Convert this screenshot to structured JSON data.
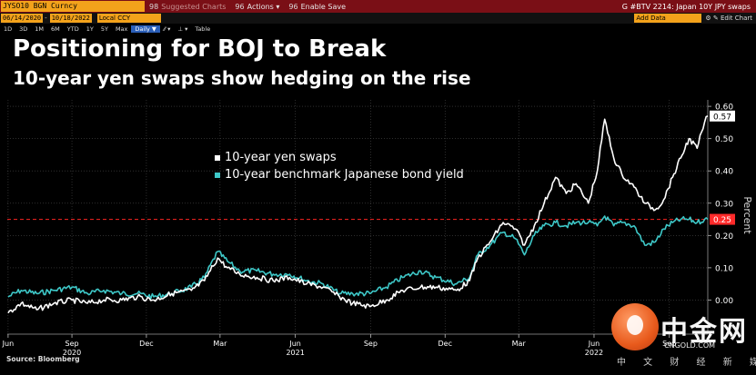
{
  "toolbar": {
    "ticker": "JYSO10 BGN Curncy",
    "suggested_num": "98",
    "suggested": "Suggested Charts",
    "actions_num": "96",
    "actions": "Actions",
    "save_num": "96",
    "save": "Enable Save",
    "security": "G #BTV 2214: Japan 10Y JPY swaps"
  },
  "daterange": {
    "start": "06/14/2020",
    "end": "10/18/2022",
    "currency": "Local CCY",
    "add_data": "Add Data",
    "edit_chart": "Edit Chart",
    "timeframes": [
      "1D",
      "3D",
      "1M",
      "6M",
      "YTD",
      "1Y",
      "5Y",
      "Max",
      "Daily ▼"
    ],
    "selected_timeframe": "Daily ▼",
    "table_label": "Table"
  },
  "title": "Positioning for BOJ to Break",
  "subtitle": "10-year yen swaps show hedging on the rise",
  "source": "Source: Bloomberg",
  "colors": {
    "swap": "#ffffff",
    "jgb": "#3ec8c8",
    "ref_line": "#e0201e",
    "ref_badge": "#ff2a2a"
  },
  "watermark": {
    "name": "中金网",
    "url": "CNGOLD.COM",
    "tagline": "中 文 财 经 新 媒 体"
  },
  "chart_data": {
    "type": "line",
    "ylabel": "Percent",
    "ylim": [
      -0.1,
      0.62
    ],
    "yticks": [
      0.0,
      0.1,
      0.2,
      0.3,
      0.4,
      0.5,
      0.6
    ],
    "ytick_labels": [
      "0.00",
      "0.10",
      "0.20",
      "0.30",
      "0.40",
      "0.50",
      "0.60"
    ],
    "x_ticks": [
      {
        "date": "2020-06-15",
        "label": "Jun"
      },
      {
        "date": "2020-09-01",
        "label": "Sep"
      },
      {
        "date": "2020-12-01",
        "label": "Dec"
      },
      {
        "date": "2021-03-01",
        "label": "Mar"
      },
      {
        "date": "2021-06-01",
        "label": "Jun"
      },
      {
        "date": "2021-09-01",
        "label": "Sep"
      },
      {
        "date": "2021-12-01",
        "label": "Dec"
      },
      {
        "date": "2022-03-01",
        "label": "Mar"
      },
      {
        "date": "2022-06-01",
        "label": "Jun"
      },
      {
        "date": "2022-09-01",
        "label": "Sep"
      }
    ],
    "year_labels": [
      {
        "date": "2020-09-01",
        "label": "2020"
      },
      {
        "date": "2021-06-01",
        "label": "2021"
      },
      {
        "date": "2022-06-01",
        "label": "2022"
      }
    ],
    "xlim": [
      "2020-06-14",
      "2022-10-18"
    ],
    "reference_line": {
      "value": 0.25,
      "label": "0.25"
    },
    "last_value_label": "0.57",
    "series": [
      {
        "name": "10-year yen swaps",
        "points": [
          [
            "2020-06-15",
            -0.04
          ],
          [
            "2020-07-01",
            -0.01
          ],
          [
            "2020-07-20",
            -0.03
          ],
          [
            "2020-08-10",
            -0.01
          ],
          [
            "2020-09-01",
            0.0
          ],
          [
            "2020-09-20",
            -0.01
          ],
          [
            "2020-10-10",
            0.0
          ],
          [
            "2020-11-01",
            0.0
          ],
          [
            "2020-11-20",
            0.01
          ],
          [
            "2020-12-10",
            0.0
          ],
          [
            "2021-01-01",
            0.02
          ],
          [
            "2021-01-25",
            0.03
          ],
          [
            "2021-02-10",
            0.06
          ],
          [
            "2021-02-26",
            0.13
          ],
          [
            "2021-03-10",
            0.1
          ],
          [
            "2021-03-25",
            0.08
          ],
          [
            "2021-04-15",
            0.07
          ],
          [
            "2021-05-05",
            0.06
          ],
          [
            "2021-05-25",
            0.07
          ],
          [
            "2021-06-15",
            0.05
          ],
          [
            "2021-07-05",
            0.04
          ],
          [
            "2021-07-25",
            0.01
          ],
          [
            "2021-08-10",
            -0.01
          ],
          [
            "2021-08-31",
            -0.02
          ],
          [
            "2021-09-20",
            0.0
          ],
          [
            "2021-10-10",
            0.03
          ],
          [
            "2021-11-01",
            0.04
          ],
          [
            "2021-11-20",
            0.04
          ],
          [
            "2021-12-15",
            0.03
          ],
          [
            "2021-12-31",
            0.06
          ],
          [
            "2022-01-10",
            0.13
          ],
          [
            "2022-01-25",
            0.18
          ],
          [
            "2022-02-10",
            0.24
          ],
          [
            "2022-02-25",
            0.22
          ],
          [
            "2022-03-08",
            0.17
          ],
          [
            "2022-03-20",
            0.23
          ],
          [
            "2022-04-01",
            0.3
          ],
          [
            "2022-04-15",
            0.38
          ],
          [
            "2022-04-28",
            0.33
          ],
          [
            "2022-05-10",
            0.36
          ],
          [
            "2022-05-25",
            0.3
          ],
          [
            "2022-06-05",
            0.4
          ],
          [
            "2022-06-14",
            0.56
          ],
          [
            "2022-06-25",
            0.44
          ],
          [
            "2022-07-05",
            0.39
          ],
          [
            "2022-07-20",
            0.35
          ],
          [
            "2022-08-02",
            0.3
          ],
          [
            "2022-08-15",
            0.28
          ],
          [
            "2022-08-25",
            0.31
          ],
          [
            "2022-09-05",
            0.38
          ],
          [
            "2022-09-15",
            0.44
          ],
          [
            "2022-09-25",
            0.5
          ],
          [
            "2022-10-05",
            0.47
          ],
          [
            "2022-10-14",
            0.55
          ],
          [
            "2022-10-18",
            0.57
          ]
        ]
      },
      {
        "name": "10-year benchmark Japanese bond yield",
        "points": [
          [
            "2020-06-15",
            0.01
          ],
          [
            "2020-07-01",
            0.03
          ],
          [
            "2020-07-20",
            0.02
          ],
          [
            "2020-08-10",
            0.03
          ],
          [
            "2020-09-01",
            0.04
          ],
          [
            "2020-09-20",
            0.02
          ],
          [
            "2020-10-10",
            0.03
          ],
          [
            "2020-11-01",
            0.02
          ],
          [
            "2020-11-20",
            0.02
          ],
          [
            "2020-12-10",
            0.01
          ],
          [
            "2021-01-01",
            0.02
          ],
          [
            "2021-01-25",
            0.04
          ],
          [
            "2021-02-10",
            0.07
          ],
          [
            "2021-02-26",
            0.15
          ],
          [
            "2021-03-10",
            0.12
          ],
          [
            "2021-03-25",
            0.09
          ],
          [
            "2021-04-15",
            0.09
          ],
          [
            "2021-05-05",
            0.08
          ],
          [
            "2021-05-25",
            0.08
          ],
          [
            "2021-06-15",
            0.06
          ],
          [
            "2021-07-05",
            0.05
          ],
          [
            "2021-07-25",
            0.02
          ],
          [
            "2021-08-10",
            0.02
          ],
          [
            "2021-08-31",
            0.02
          ],
          [
            "2021-09-20",
            0.04
          ],
          [
            "2021-10-10",
            0.07
          ],
          [
            "2021-11-01",
            0.09
          ],
          [
            "2021-11-20",
            0.07
          ],
          [
            "2021-12-15",
            0.05
          ],
          [
            "2021-12-31",
            0.07
          ],
          [
            "2022-01-10",
            0.14
          ],
          [
            "2022-01-25",
            0.17
          ],
          [
            "2022-02-10",
            0.21
          ],
          [
            "2022-02-25",
            0.19
          ],
          [
            "2022-03-08",
            0.14
          ],
          [
            "2022-03-20",
            0.2
          ],
          [
            "2022-04-01",
            0.23
          ],
          [
            "2022-04-15",
            0.24
          ],
          [
            "2022-04-28",
            0.23
          ],
          [
            "2022-05-10",
            0.24
          ],
          [
            "2022-05-25",
            0.24
          ],
          [
            "2022-06-05",
            0.23
          ],
          [
            "2022-06-14",
            0.26
          ],
          [
            "2022-06-25",
            0.23
          ],
          [
            "2022-07-05",
            0.24
          ],
          [
            "2022-07-20",
            0.23
          ],
          [
            "2022-08-02",
            0.17
          ],
          [
            "2022-08-15",
            0.18
          ],
          [
            "2022-08-25",
            0.22
          ],
          [
            "2022-09-05",
            0.24
          ],
          [
            "2022-09-15",
            0.25
          ],
          [
            "2022-09-25",
            0.25
          ],
          [
            "2022-10-05",
            0.24
          ],
          [
            "2022-10-14",
            0.25
          ],
          [
            "2022-10-18",
            0.25
          ]
        ]
      }
    ]
  }
}
